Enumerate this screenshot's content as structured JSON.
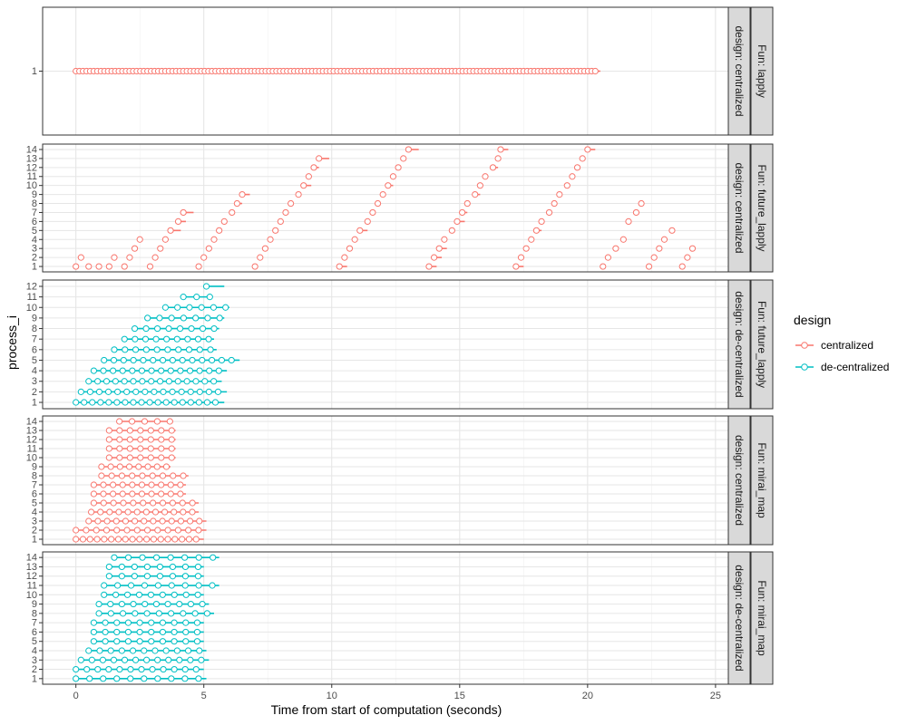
{
  "chart_data": {
    "type": "faceted-segments",
    "xlabel": "Time from start of computation (seconds)",
    "ylabel": "process_i",
    "xlim": [
      -1.3,
      25.5
    ],
    "x_ticks": [
      0,
      5,
      10,
      15,
      20,
      25
    ],
    "legend": {
      "title": "design",
      "placement": "right",
      "entries": [
        {
          "label": "centralized",
          "color": "#F8766D"
        },
        {
          "label": "de-centralized",
          "color": "#00BFC4"
        }
      ]
    },
    "panels": [
      {
        "strip_fun": "Fun: lapply",
        "strip_design": "design: centralized",
        "design": "centralized",
        "y_ticks": [
          "1"
        ],
        "rows": [
          {
            "process": 1,
            "start": 0.0,
            "end": 20.5,
            "step": 0.14,
            "points": 146
          }
        ]
      },
      {
        "strip_fun": "Fun: future_lapply",
        "strip_design": "design: centralized",
        "design": "centralized",
        "y_ticks": [
          "1",
          "2",
          "3",
          "4",
          "5",
          "6",
          "7",
          "8",
          "9",
          "10",
          "11",
          "12",
          "13",
          "14"
        ],
        "rows": [
          {
            "process": 14,
            "tasks": [
              [
                13.0,
                13.4
              ],
              [
                16.6,
                16.9
              ],
              [
                20.0,
                20.3
              ]
            ]
          },
          {
            "process": 13,
            "tasks": [
              [
                9.5,
                9.9
              ],
              [
                12.8,
                12.9
              ],
              [
                16.5,
                16.6
              ],
              [
                19.8,
                19.9
              ]
            ]
          },
          {
            "process": 12,
            "tasks": [
              [
                9.3,
                9.5
              ],
              [
                12.6,
                12.7
              ],
              [
                16.3,
                16.5
              ],
              [
                19.6,
                19.7
              ]
            ]
          },
          {
            "process": 11,
            "tasks": [
              [
                9.1,
                9.2
              ],
              [
                12.4,
                12.5
              ],
              [
                16.0,
                16.1
              ],
              [
                19.4,
                19.5
              ]
            ]
          },
          {
            "process": 10,
            "tasks": [
              [
                8.9,
                9.2
              ],
              [
                12.2,
                12.4
              ],
              [
                15.8,
                15.9
              ],
              [
                19.2,
                19.3
              ]
            ]
          },
          {
            "process": 9,
            "tasks": [
              [
                6.5,
                6.8
              ],
              [
                8.7,
                8.8
              ],
              [
                12.0,
                12.1
              ],
              [
                15.6,
                15.8
              ],
              [
                18.9,
                19.0
              ]
            ]
          },
          {
            "process": 8,
            "tasks": [
              [
                6.3,
                6.5
              ],
              [
                8.4,
                8.5
              ],
              [
                11.8,
                11.9
              ],
              [
                15.3,
                15.4
              ],
              [
                18.7,
                18.8
              ],
              [
                22.1,
                22.2
              ]
            ]
          },
          {
            "process": 7,
            "tasks": [
              [
                4.2,
                4.6
              ],
              [
                6.1,
                6.2
              ],
              [
                8.2,
                8.3
              ],
              [
                11.6,
                11.7
              ],
              [
                15.1,
                15.3
              ],
              [
                18.5,
                18.6
              ],
              [
                21.9,
                22.0
              ]
            ]
          },
          {
            "process": 6,
            "tasks": [
              [
                4.0,
                4.3
              ],
              [
                5.8,
                5.9
              ],
              [
                8.0,
                8.1
              ],
              [
                11.4,
                11.5
              ],
              [
                14.9,
                15.2
              ],
              [
                18.2,
                18.3
              ],
              [
                21.6,
                21.7
              ]
            ]
          },
          {
            "process": 5,
            "tasks": [
              [
                3.7,
                4.1
              ],
              [
                5.6,
                5.7
              ],
              [
                7.8,
                7.9
              ],
              [
                11.1,
                11.4
              ],
              [
                14.7,
                14.8
              ],
              [
                18.0,
                18.2
              ],
              [
                23.3,
                23.4
              ]
            ]
          },
          {
            "process": 4,
            "tasks": [
              [
                2.5,
                2.6
              ],
              [
                3.5,
                3.6
              ],
              [
                5.4,
                5.5
              ],
              [
                7.6,
                7.7
              ],
              [
                10.9,
                11.0
              ],
              [
                14.4,
                14.5
              ],
              [
                17.8,
                17.9
              ],
              [
                21.4,
                21.5
              ],
              [
                23.0,
                23.1
              ]
            ]
          },
          {
            "process": 3,
            "tasks": [
              [
                2.3,
                2.4
              ],
              [
                3.3,
                3.4
              ],
              [
                5.2,
                5.3
              ],
              [
                7.4,
                7.5
              ],
              [
                10.7,
                10.8
              ],
              [
                14.2,
                14.5
              ],
              [
                17.6,
                17.7
              ],
              [
                21.1,
                21.2
              ],
              [
                22.8,
                22.9
              ],
              [
                24.1,
                24.2
              ]
            ]
          },
          {
            "process": 2,
            "tasks": [
              [
                0.2,
                0.3
              ],
              [
                1.5,
                1.6
              ],
              [
                2.1,
                2.2
              ],
              [
                3.1,
                3.2
              ],
              [
                5.0,
                5.1
              ],
              [
                7.2,
                7.3
              ],
              [
                10.5,
                10.6
              ],
              [
                14.0,
                14.3
              ],
              [
                17.4,
                17.5
              ],
              [
                20.8,
                20.9
              ],
              [
                22.6,
                22.7
              ],
              [
                23.9,
                24.0
              ]
            ]
          },
          {
            "process": 1,
            "tasks": [
              [
                0.0,
                0.1
              ],
              [
                0.5,
                0.6
              ],
              [
                0.9,
                1.0
              ],
              [
                1.3,
                1.4
              ],
              [
                1.9,
                2.0
              ],
              [
                2.9,
                3.0
              ],
              [
                4.8,
                4.9
              ],
              [
                7.0,
                7.1
              ],
              [
                10.3,
                10.6
              ],
              [
                13.8,
                14.1
              ],
              [
                17.2,
                17.5
              ],
              [
                20.6,
                20.7
              ],
              [
                22.4,
                22.5
              ],
              [
                23.7,
                23.8
              ]
            ]
          }
        ]
      },
      {
        "strip_fun": "Fun: future_lapply",
        "strip_design": "design: de-centralized",
        "design": "de-centralized",
        "y_ticks": [
          "1",
          "2",
          "3",
          "4",
          "5",
          "6",
          "7",
          "8",
          "9",
          "10",
          "11",
          "12"
        ],
        "rows": [
          {
            "process": 12,
            "start": 5.1,
            "end": 5.8,
            "n": 1
          },
          {
            "process": 11,
            "start": 4.2,
            "end": 5.3,
            "n": 3
          },
          {
            "process": 10,
            "start": 3.5,
            "end": 6.0,
            "n": 6
          },
          {
            "process": 9,
            "start": 2.8,
            "end": 5.8,
            "n": 7
          },
          {
            "process": 8,
            "start": 2.3,
            "end": 5.6,
            "n": 8
          },
          {
            "process": 7,
            "start": 1.9,
            "end": 5.4,
            "n": 9
          },
          {
            "process": 6,
            "start": 1.5,
            "end": 5.5,
            "n": 10
          },
          {
            "process": 5,
            "start": 1.1,
            "end": 6.4,
            "n": 14
          },
          {
            "process": 4,
            "start": 0.7,
            "end": 5.9,
            "n": 14
          },
          {
            "process": 3,
            "start": 0.5,
            "end": 5.7,
            "n": 15
          },
          {
            "process": 2,
            "start": 0.2,
            "end": 5.9,
            "n": 16
          },
          {
            "process": 1,
            "start": 0.0,
            "end": 5.8,
            "n": 18
          }
        ]
      },
      {
        "strip_fun": "Fun: mirai_map",
        "strip_design": "design: centralized",
        "design": "centralized",
        "y_ticks": [
          "1",
          "2",
          "3",
          "4",
          "5",
          "6",
          "7",
          "8",
          "9",
          "10",
          "11",
          "12",
          "13",
          "14"
        ],
        "rows": [
          {
            "process": 14,
            "start": 1.7,
            "end": 3.8,
            "n": 5
          },
          {
            "process": 13,
            "start": 1.3,
            "end": 3.9,
            "n": 7
          },
          {
            "process": 12,
            "start": 1.3,
            "end": 3.9,
            "n": 7
          },
          {
            "process": 11,
            "start": 1.3,
            "end": 3.9,
            "n": 7
          },
          {
            "process": 10,
            "start": 1.3,
            "end": 3.9,
            "n": 7
          },
          {
            "process": 9,
            "start": 1.0,
            "end": 3.7,
            "n": 8
          },
          {
            "process": 8,
            "start": 1.0,
            "end": 4.4,
            "n": 9
          },
          {
            "process": 7,
            "start": 0.7,
            "end": 4.3,
            "n": 10
          },
          {
            "process": 6,
            "start": 0.7,
            "end": 4.3,
            "n": 10
          },
          {
            "process": 5,
            "start": 0.7,
            "end": 4.8,
            "n": 11
          },
          {
            "process": 4,
            "start": 0.6,
            "end": 4.8,
            "n": 12
          },
          {
            "process": 3,
            "start": 0.5,
            "end": 5.1,
            "n": 13
          },
          {
            "process": 2,
            "start": 0.0,
            "end": 5.1,
            "n": 13
          },
          {
            "process": 1,
            "start": 0.0,
            "end": 5.0,
            "n": 18
          }
        ]
      },
      {
        "strip_fun": "Fun: mirai_map",
        "strip_design": "design: de-centralized",
        "design": "de-centralized",
        "y_ticks": [
          "1",
          "2",
          "3",
          "4",
          "5",
          "6",
          "7",
          "8",
          "9",
          "10",
          "11",
          "12",
          "13",
          "14"
        ],
        "rows": [
          {
            "process": 14,
            "start": 1.5,
            "end": 5.6,
            "n": 8
          },
          {
            "process": 13,
            "start": 1.3,
            "end": 5.0,
            "n": 8
          },
          {
            "process": 12,
            "start": 1.3,
            "end": 5.0,
            "n": 8
          },
          {
            "process": 11,
            "start": 1.1,
            "end": 5.6,
            "n": 9
          },
          {
            "process": 10,
            "start": 1.1,
            "end": 5.0,
            "n": 9
          },
          {
            "process": 9,
            "start": 0.9,
            "end": 5.2,
            "n": 10
          },
          {
            "process": 8,
            "start": 0.9,
            "end": 5.4,
            "n": 10
          },
          {
            "process": 7,
            "start": 0.7,
            "end": 5.0,
            "n": 10
          },
          {
            "process": 6,
            "start": 0.7,
            "end": 5.0,
            "n": 10
          },
          {
            "process": 5,
            "start": 0.7,
            "end": 5.0,
            "n": 10
          },
          {
            "process": 4,
            "start": 0.5,
            "end": 5.1,
            "n": 11
          },
          {
            "process": 3,
            "start": 0.2,
            "end": 5.2,
            "n": 12
          },
          {
            "process": 2,
            "start": 0.0,
            "end": 5.0,
            "n": 12
          },
          {
            "process": 1,
            "start": 0.0,
            "end": 5.1,
            "n": 10
          }
        ]
      }
    ]
  }
}
